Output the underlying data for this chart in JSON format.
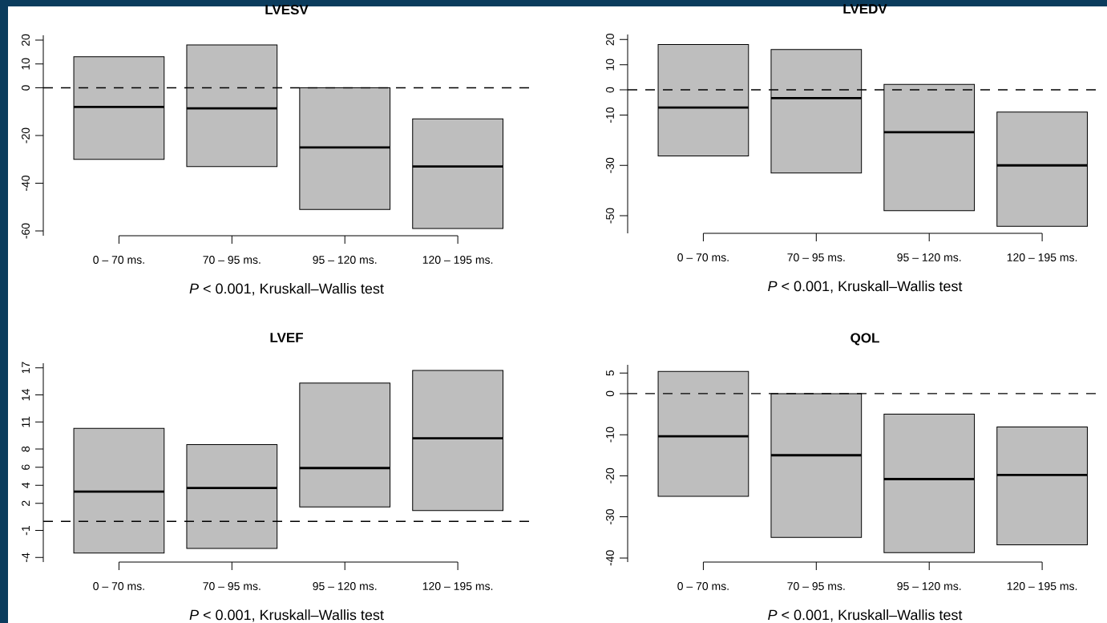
{
  "chart_data": [
    {
      "type": "box",
      "title": "LVESV",
      "xlabel": "*P* < 0.001, Kruskall–Wallis test",
      "categories": [
        "0 – 70 ms.",
        "70 – 95 ms.",
        "95 – 120 ms.",
        "120 – 195 ms."
      ],
      "color": "#bebebe",
      "boxes": [
        {
          "low": -30,
          "q1": -30,
          "median": -8,
          "q3": 13,
          "high": 13
        },
        {
          "low": -33,
          "q1": -33,
          "median": -8.6,
          "q3": 18,
          "high": 18
        },
        {
          "low": -51,
          "q1": -51,
          "median": -25,
          "q3": 0,
          "high": 0
        },
        {
          "low": -59,
          "q1": -59,
          "median": -33,
          "q3": -13,
          "high": -13
        }
      ],
      "ylim": [
        -62,
        22
      ],
      "yticks": [
        -60,
        -40,
        -20,
        0,
        10,
        20
      ],
      "ref_lines": [
        {
          "axis": "y",
          "value": 0,
          "color": "#000000",
          "line_style": "dashed"
        }
      ]
    },
    {
      "type": "box",
      "title": "LVEDV",
      "xlabel": "*P* < 0.001, Kruskall–Wallis test",
      "categories": [
        "0 – 70 ms.",
        "70 – 95 ms.",
        "95 – 120 ms.",
        "120 – 195 ms."
      ],
      "color": "#bebebe",
      "boxes": [
        {
          "low": -26.3,
          "q1": -26.3,
          "median": -7,
          "q3": 18,
          "high": 18
        },
        {
          "low": -33,
          "q1": -33,
          "median": -3.3,
          "q3": 16,
          "high": 16
        },
        {
          "low": -48,
          "q1": -48,
          "median": -16.8,
          "q3": 2.2,
          "high": 2.2
        },
        {
          "low": -54.2,
          "q1": -54.2,
          "median": -30,
          "q3": -8.8,
          "high": -8.8
        }
      ],
      "ylim": [
        -57,
        22
      ],
      "yticks": [
        -50,
        -30,
        -10,
        0,
        10,
        20
      ],
      "ref_lines": [
        {
          "axis": "y",
          "value": 0,
          "color": "#000000",
          "line_style": "dashed"
        }
      ]
    },
    {
      "type": "box",
      "title": "LVEF",
      "xlabel": "*P* < 0.001, Kruskall–Wallis test",
      "categories": [
        "0 – 70 ms.",
        "70 – 95 ms.",
        "95 – 120 ms.",
        "120 – 195 ms."
      ],
      "color": "#bebebe",
      "boxes": [
        {
          "low": -3.5,
          "q1": -3.5,
          "median": 3.3,
          "q3": 10.3,
          "high": 10.3
        },
        {
          "low": -3,
          "q1": -3,
          "median": 3.7,
          "q3": 8.5,
          "high": 8.5
        },
        {
          "low": 1.6,
          "q1": 1.6,
          "median": 5.9,
          "q3": 15.3,
          "high": 15.3
        },
        {
          "low": 1.2,
          "q1": 1.2,
          "median": 9.2,
          "q3": 16.7,
          "high": 16.7
        }
      ],
      "ylim": [
        -4.5,
        17.5
      ],
      "yticks": [
        -4,
        -1,
        2,
        4,
        6,
        8,
        11,
        14,
        17
      ],
      "ref_lines": [
        {
          "axis": "y",
          "value": 0,
          "color": "#000000",
          "line_style": "dashed"
        }
      ]
    },
    {
      "type": "box",
      "title": "QOL",
      "xlabel": "*P* < 0.001, Kruskall–Wallis test",
      "categories": [
        "0 – 70 ms.",
        "70 – 95 ms.",
        "95 – 120 ms.",
        "120 – 195 ms."
      ],
      "color": "#bebebe",
      "boxes": [
        {
          "low": -25,
          "q1": -25,
          "median": -10.4,
          "q3": 5.4,
          "high": 5.4
        },
        {
          "low": -35,
          "q1": -35,
          "median": -15,
          "q3": 0,
          "high": 0
        },
        {
          "low": -38.7,
          "q1": -38.7,
          "median": -20.8,
          "q3": -5,
          "high": -5
        },
        {
          "low": -36.8,
          "q1": -36.8,
          "median": -19.8,
          "q3": -8.1,
          "high": -8.1
        }
      ],
      "ylim": [
        -41,
        7
      ],
      "yticks": [
        -40,
        -30,
        -20,
        -10,
        0,
        5
      ],
      "ref_lines": [
        {
          "axis": "y",
          "value": 0,
          "color": "#000000",
          "line_style": "dashed"
        }
      ]
    }
  ]
}
